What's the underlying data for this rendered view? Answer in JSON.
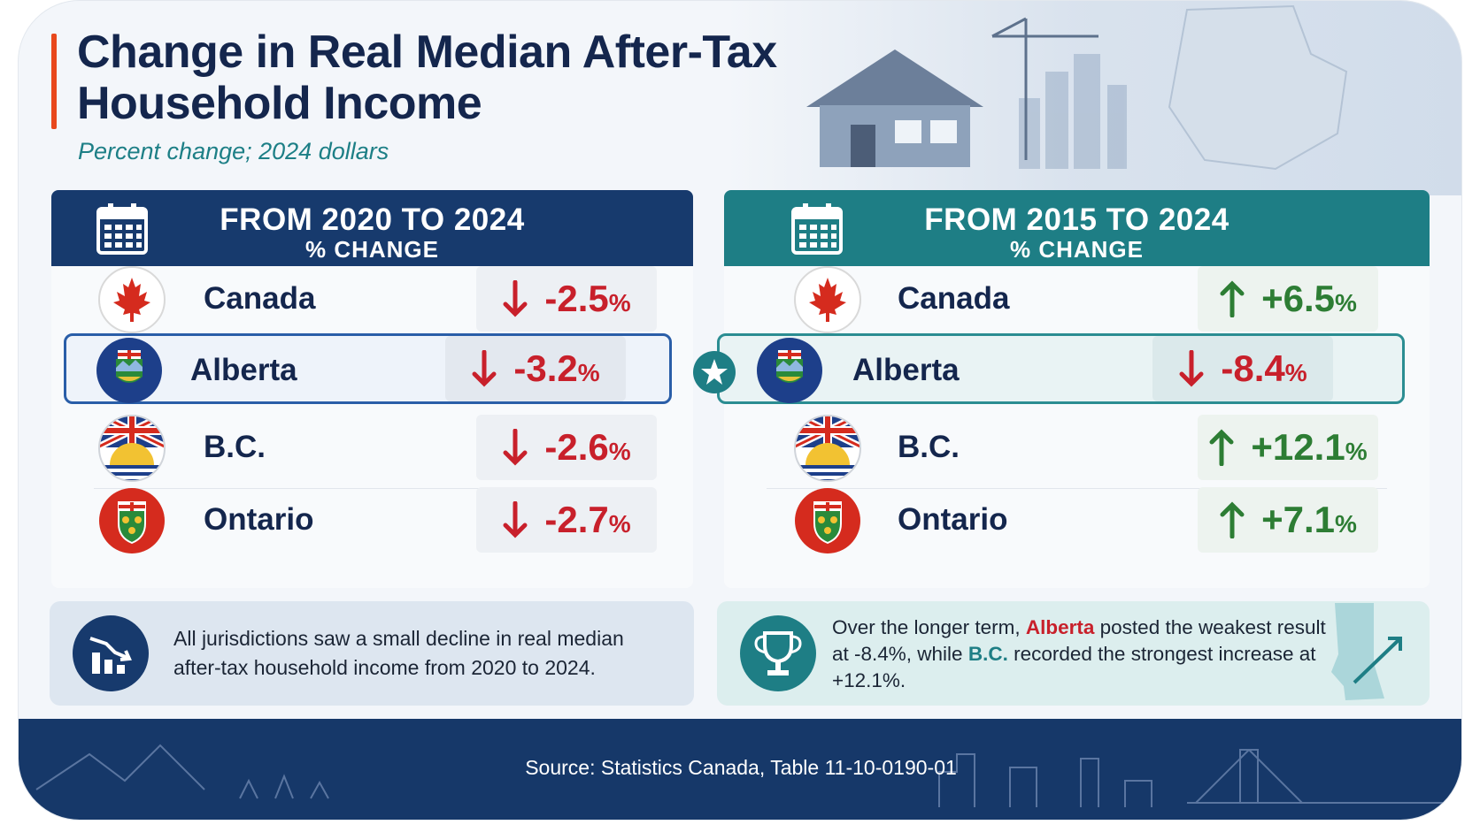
{
  "header": {
    "title": "Change in Real Median After-Tax Household Income",
    "subtitle": "Percent change; 2024 dollars"
  },
  "chart_data": [
    {
      "type": "table",
      "title": "FROM 2020 TO 2024",
      "subtitle": "% CHANGE",
      "unit": "%",
      "categories": [
        "Canada",
        "Alberta",
        "B.C.",
        "Ontario"
      ],
      "values": [
        -2.5,
        -3.2,
        -2.6,
        -2.7
      ],
      "labels": [
        "-2.5",
        "-3.2",
        "-2.6",
        "-2.7"
      ],
      "highlighted": "Alberta"
    },
    {
      "type": "table",
      "title": "FROM 2015 TO 2024",
      "subtitle": "% CHANGE",
      "unit": "%",
      "categories": [
        "Canada",
        "Alberta",
        "B.C.",
        "Ontario"
      ],
      "values": [
        6.5,
        -8.4,
        12.1,
        7.1
      ],
      "labels": [
        "+6.5",
        "-8.4",
        "+12.1",
        "+7.1"
      ],
      "highlighted": "Alberta"
    }
  ],
  "notes": {
    "left": "All jurisdictions saw a small decline in real median after-tax household income from 2020 to 2024.",
    "right": {
      "prefix": "Over the longer term,",
      "highlight1": "Alberta",
      "middle": "posted the weakest result at -8.4%, while",
      "highlight2": "B.C.",
      "suffix": "recorded the strongest increase at +12.1%."
    }
  },
  "footer": {
    "source": "Source: Statistics Canada, Table 11-10-0190-01"
  },
  "colors": {
    "navy": "#173a6d",
    "teal": "#1e7e85",
    "negative": "#c8202b",
    "positive": "#2d7d34",
    "accent": "#e8481c"
  },
  "icons": {
    "panel_header": "calendar-icon",
    "decline_note": "declining-bar-chart-icon",
    "longer_term_note": "trophy-icon",
    "highlight_marker": "star-icon"
  }
}
